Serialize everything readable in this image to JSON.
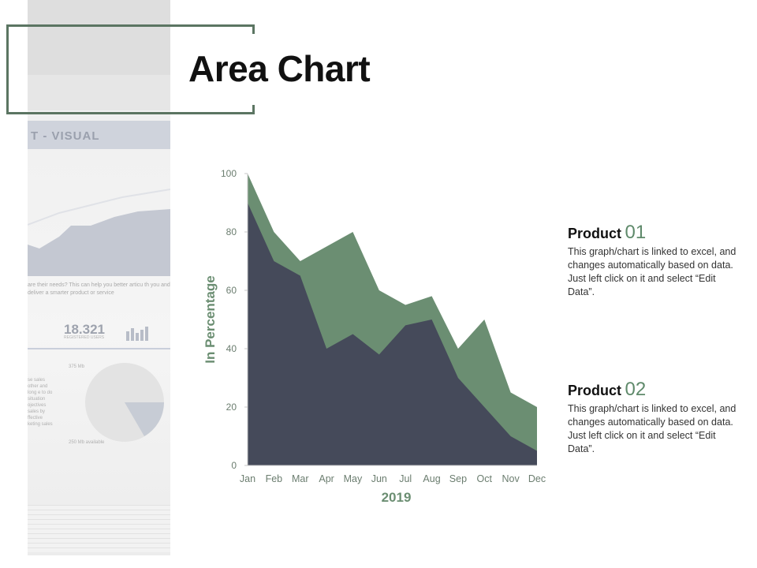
{
  "page": {
    "title": "Area Chart"
  },
  "background_photo": {
    "visual_label": "T - VISUAL",
    "paragraph": "are their needs? This can help you better articu th you and deliver a smarter product or service",
    "stat_value": "18.321",
    "stat_caption": "REGISTERED USERS",
    "pie_label_top": "375 Mb",
    "pie_label_bottom": "250 Mb available",
    "side_text": "se sales other and long e to do situation ojectives sales by ffective keting sales"
  },
  "legend": [
    {
      "name": "Product",
      "number": "01",
      "description": "This graph/chart is linked to excel, and changes automatically based on data. Just left click on it and select “Edit Data”."
    },
    {
      "name": "Product",
      "number": "02",
      "description": "This graph/chart is linked to excel, and changes automatically based on data. Just left click on it and select “Edit Data”."
    }
  ],
  "colors": {
    "frame": "#5b7562",
    "series_front": "#454a5a",
    "series_back": "#6b8e72",
    "axis_text": "#6b7d6f",
    "axis_label": "#6b8e72"
  },
  "chart_data": {
    "type": "area",
    "categories": [
      "Jan",
      "Feb",
      "Mar",
      "Apr",
      "May",
      "Jun",
      "Jul",
      "Aug",
      "Sep",
      "Oct",
      "Nov",
      "Dec"
    ],
    "series": [
      {
        "values": [
          100,
          80,
          70,
          75,
          80,
          60,
          55,
          58,
          40,
          50,
          25,
          20
        ]
      },
      {
        "values": [
          90,
          70,
          65,
          40,
          45,
          38,
          48,
          50,
          30,
          20,
          10,
          5
        ]
      }
    ],
    "xlabel": "2019",
    "ylabel": "In Percentage",
    "ylim": [
      0,
      100
    ],
    "yticks": [
      "0",
      "20",
      "40",
      "60",
      "80",
      "100"
    ],
    "grid": false,
    "legend_position": "right"
  }
}
